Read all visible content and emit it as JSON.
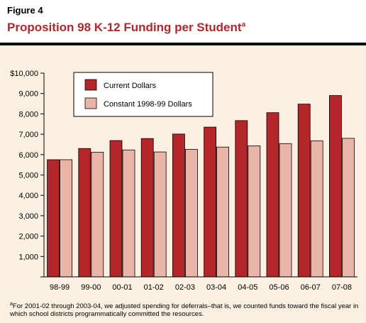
{
  "figure_label": "Figure 4",
  "title_main": "Proposition 98 K-12 Funding per Student",
  "title_marker": "a",
  "footnote_marker": "a",
  "footnote_text": "For 2001-02 through 2003-04, we adjusted spending for deferrals–that is, we counted funds toward the fiscal year in which school districts programmatically committed the resources.",
  "chart_data": {
    "type": "bar",
    "title": "Proposition 98 K-12 Funding per Student",
    "categories": [
      "98-99",
      "99-00",
      "00-01",
      "01-02",
      "02-03",
      "03-04",
      "04-05",
      "05-06",
      "06-07",
      "07-08"
    ],
    "series": [
      {
        "name": "Current Dollars",
        "color": "#b5262a",
        "values": [
          5750,
          6300,
          6690,
          6790,
          7010,
          7350,
          7670,
          8060,
          8480,
          8900
        ]
      },
      {
        "name": "Constant 1998-99 Dollars",
        "color": "#e8b5a8",
        "values": [
          5750,
          6120,
          6230,
          6130,
          6260,
          6370,
          6430,
          6540,
          6680,
          6800
        ]
      }
    ],
    "ylim": [
      0,
      10000
    ],
    "yticks": [
      0,
      1000,
      2000,
      3000,
      4000,
      5000,
      6000,
      7000,
      8000,
      9000,
      10000
    ],
    "ytick_labels": [
      "",
      "1,000",
      "2,000",
      "3,000",
      "4,000",
      "5,000",
      "6,000",
      "7,000",
      "8,000",
      "9,000",
      "$10,000"
    ],
    "xlabel": "",
    "ylabel": "",
    "grid": false,
    "legend_position": "top-left"
  }
}
